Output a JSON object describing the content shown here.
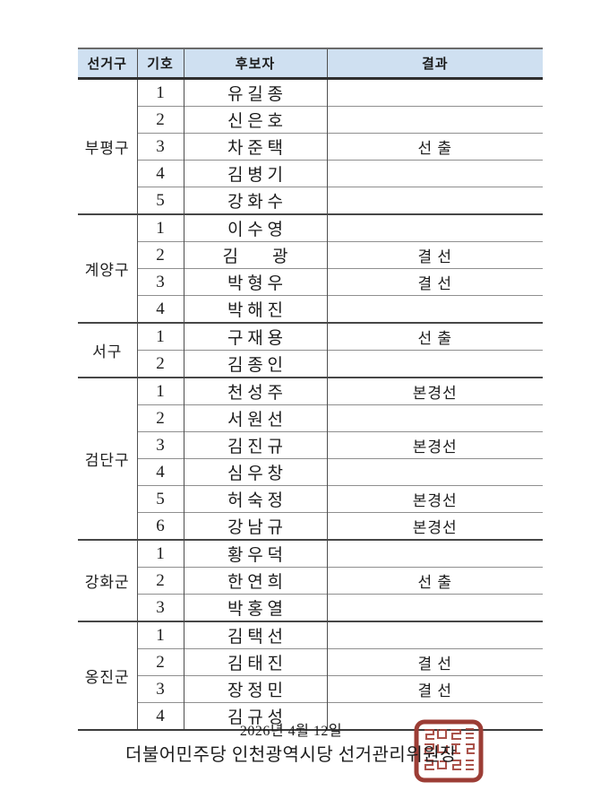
{
  "table": {
    "headers": {
      "district": "선거구",
      "number": "기호",
      "candidate": "후보자",
      "result": "결과"
    },
    "groups": [
      {
        "district": "부평구",
        "rows": [
          {
            "no": "1",
            "name": "유 길 종",
            "result": ""
          },
          {
            "no": "2",
            "name": "신 은 호",
            "result": ""
          },
          {
            "no": "3",
            "name": "차 준 택",
            "result": "선 출"
          },
          {
            "no": "4",
            "name": "김 병 기",
            "result": ""
          },
          {
            "no": "5",
            "name": "강 화 수",
            "result": ""
          }
        ]
      },
      {
        "district": "계양구",
        "rows": [
          {
            "no": "1",
            "name": "이 수 영",
            "result": ""
          },
          {
            "no": "2",
            "name": "김　　광",
            "result": "결 선"
          },
          {
            "no": "3",
            "name": "박 형 우",
            "result": "결 선"
          },
          {
            "no": "4",
            "name": "박 해 진",
            "result": ""
          }
        ]
      },
      {
        "district": "서구",
        "rows": [
          {
            "no": "1",
            "name": "구 재 용",
            "result": "선 출"
          },
          {
            "no": "2",
            "name": "김 종 인",
            "result": ""
          }
        ]
      },
      {
        "district": "검단구",
        "rows": [
          {
            "no": "1",
            "name": "천 성 주",
            "result": "본경선"
          },
          {
            "no": "2",
            "name": "서 원 선",
            "result": ""
          },
          {
            "no": "3",
            "name": "김 진 규",
            "result": "본경선"
          },
          {
            "no": "4",
            "name": "심 우 창",
            "result": ""
          },
          {
            "no": "5",
            "name": "허 숙 정",
            "result": "본경선"
          },
          {
            "no": "6",
            "name": "강 남 규",
            "result": "본경선"
          }
        ]
      },
      {
        "district": "강화군",
        "rows": [
          {
            "no": "1",
            "name": "황 우 덕",
            "result": ""
          },
          {
            "no": "2",
            "name": "한 연 희",
            "result": "선 출"
          },
          {
            "no": "3",
            "name": "박 홍 열",
            "result": ""
          }
        ]
      },
      {
        "district": "옹진군",
        "rows": [
          {
            "no": "1",
            "name": "김 택 선",
            "result": ""
          },
          {
            "no": "2",
            "name": "김 태 진",
            "result": "결 선"
          },
          {
            "no": "3",
            "name": "장 정 민",
            "result": "결 선"
          },
          {
            "no": "4",
            "name": "김 규 성",
            "result": ""
          }
        ]
      }
    ]
  },
  "footer": {
    "date": "2026년 4월 12일",
    "signature": "더불어민주당 인천광역시당 선거관리위원장"
  },
  "colors": {
    "header_bg": "#cfe0f1",
    "line_major": "#3c3c3c",
    "line_minor": "#8f8f8f",
    "text": "#1c1c1c",
    "seal_red": "#9c3d35"
  }
}
